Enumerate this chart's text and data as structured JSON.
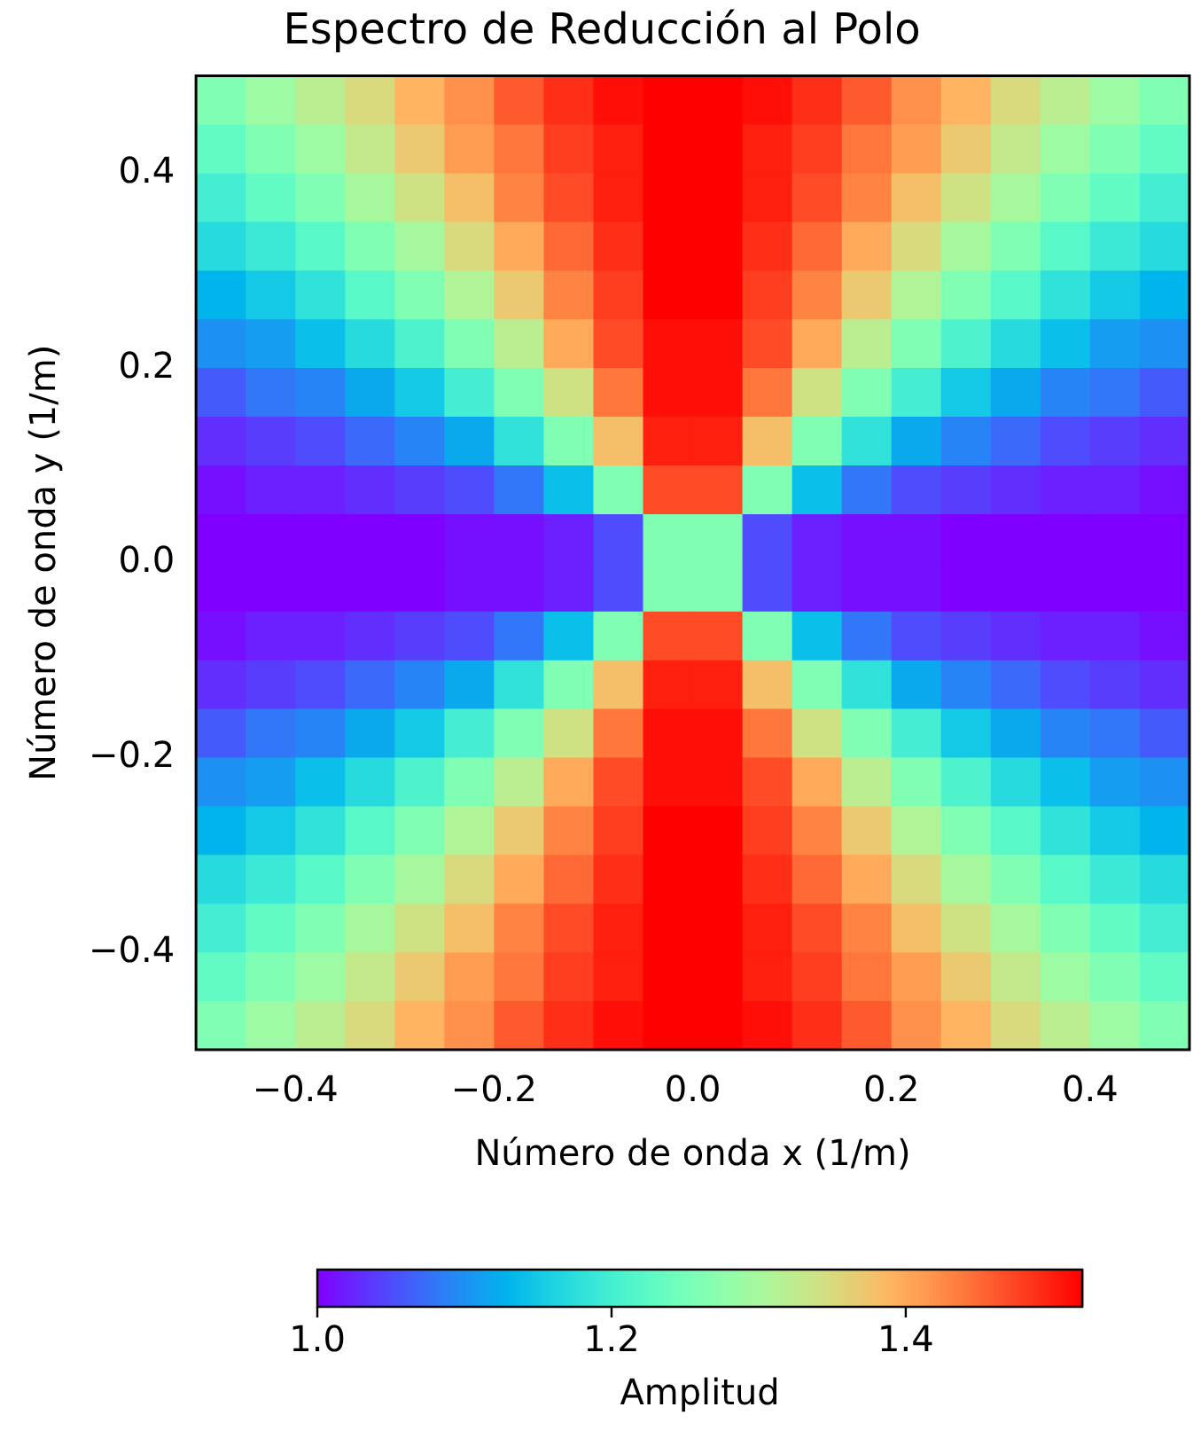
{
  "chart_data": {
    "type": "heatmap",
    "title": "Espectro de Reducción al Polo",
    "xlabel": "Número de onda x (1/m)",
    "ylabel": "Número de onda y (1/m)",
    "clabel": "Amplitud",
    "xlim": [
      -0.5,
      0.5
    ],
    "xticks": [
      {
        "value": -0.4,
        "label": "−0.4"
      },
      {
        "value": -0.2,
        "label": "−0.2"
      },
      {
        "value": 0,
        "label": "0.0"
      },
      0.2,
      0.4
    ],
    "ylim": [
      -0.5,
      0.5
    ],
    "yticks": [
      {
        "value": -0.4,
        "label": "−0.4"
      },
      {
        "value": -0.2,
        "label": "−0.2"
      },
      {
        "value": 0,
        "label": "0.0"
      },
      0.2,
      0.4
    ],
    "clim": [
      1.0,
      1.52
    ],
    "cticks": [
      {
        "value": 1,
        "label": "1.0"
      },
      1.2,
      1.4
    ],
    "cells": [
      [
        1.26,
        1.29,
        1.32,
        1.35,
        1.39,
        1.42,
        1.46,
        1.49,
        1.51,
        1.52,
        1.52,
        1.51,
        1.49,
        1.46,
        1.42,
        1.39,
        1.35,
        1.32,
        1.29,
        1.26
      ],
      [
        1.23,
        1.26,
        1.29,
        1.33,
        1.37,
        1.41,
        1.44,
        1.48,
        1.5,
        1.52,
        1.52,
        1.5,
        1.48,
        1.44,
        1.41,
        1.37,
        1.33,
        1.29,
        1.26,
        1.23
      ],
      [
        1.2,
        1.23,
        1.26,
        1.3,
        1.34,
        1.38,
        1.43,
        1.47,
        1.5,
        1.52,
        1.52,
        1.5,
        1.47,
        1.43,
        1.38,
        1.34,
        1.3,
        1.26,
        1.23,
        1.2
      ],
      [
        1.17,
        1.19,
        1.22,
        1.26,
        1.3,
        1.35,
        1.4,
        1.45,
        1.49,
        1.52,
        1.52,
        1.49,
        1.45,
        1.4,
        1.35,
        1.3,
        1.26,
        1.22,
        1.19,
        1.17
      ],
      [
        1.13,
        1.15,
        1.18,
        1.22,
        1.26,
        1.31,
        1.37,
        1.43,
        1.48,
        1.52,
        1.52,
        1.48,
        1.43,
        1.37,
        1.31,
        1.26,
        1.22,
        1.18,
        1.15,
        1.13
      ],
      [
        1.1,
        1.11,
        1.14,
        1.17,
        1.21,
        1.26,
        1.32,
        1.4,
        1.47,
        1.51,
        1.51,
        1.47,
        1.4,
        1.32,
        1.26,
        1.21,
        1.17,
        1.14,
        1.11,
        1.1
      ],
      [
        1.06,
        1.08,
        1.09,
        1.12,
        1.15,
        1.2,
        1.26,
        1.34,
        1.44,
        1.51,
        1.51,
        1.44,
        1.34,
        1.26,
        1.2,
        1.15,
        1.12,
        1.09,
        1.08,
        1.06
      ],
      [
        1.03,
        1.04,
        1.05,
        1.07,
        1.09,
        1.12,
        1.18,
        1.26,
        1.38,
        1.5,
        1.5,
        1.38,
        1.26,
        1.18,
        1.12,
        1.09,
        1.07,
        1.05,
        1.04,
        1.03
      ],
      [
        1.01,
        1.02,
        1.02,
        1.03,
        1.04,
        1.05,
        1.08,
        1.14,
        1.26,
        1.47,
        1.47,
        1.26,
        1.14,
        1.08,
        1.05,
        1.04,
        1.03,
        1.02,
        1.02,
        1.01
      ],
      [
        1.0,
        1.0,
        1.0,
        1.0,
        1.0,
        1.01,
        1.01,
        1.02,
        1.05,
        1.26,
        1.26,
        1.05,
        1.02,
        1.01,
        1.01,
        1.0,
        1.0,
        1.0,
        1.0,
        1.0
      ],
      [
        1.0,
        1.0,
        1.0,
        1.0,
        1.0,
        1.01,
        1.01,
        1.02,
        1.05,
        1.26,
        1.26,
        1.05,
        1.02,
        1.01,
        1.01,
        1.0,
        1.0,
        1.0,
        1.0,
        1.0
      ],
      [
        1.01,
        1.02,
        1.02,
        1.03,
        1.04,
        1.05,
        1.08,
        1.14,
        1.26,
        1.47,
        1.47,
        1.26,
        1.14,
        1.08,
        1.05,
        1.04,
        1.03,
        1.02,
        1.02,
        1.01
      ],
      [
        1.03,
        1.04,
        1.05,
        1.07,
        1.09,
        1.12,
        1.18,
        1.26,
        1.38,
        1.5,
        1.5,
        1.38,
        1.26,
        1.18,
        1.12,
        1.09,
        1.07,
        1.05,
        1.04,
        1.03
      ],
      [
        1.06,
        1.08,
        1.09,
        1.12,
        1.15,
        1.2,
        1.26,
        1.34,
        1.44,
        1.51,
        1.51,
        1.44,
        1.34,
        1.26,
        1.2,
        1.15,
        1.12,
        1.09,
        1.08,
        1.06
      ],
      [
        1.1,
        1.11,
        1.14,
        1.17,
        1.21,
        1.26,
        1.32,
        1.4,
        1.47,
        1.51,
        1.51,
        1.47,
        1.4,
        1.32,
        1.26,
        1.21,
        1.17,
        1.14,
        1.11,
        1.1
      ],
      [
        1.13,
        1.15,
        1.18,
        1.22,
        1.26,
        1.31,
        1.37,
        1.43,
        1.48,
        1.52,
        1.52,
        1.48,
        1.43,
        1.37,
        1.31,
        1.26,
        1.22,
        1.18,
        1.15,
        1.13
      ],
      [
        1.17,
        1.19,
        1.22,
        1.26,
        1.3,
        1.35,
        1.4,
        1.45,
        1.49,
        1.52,
        1.52,
        1.49,
        1.45,
        1.4,
        1.35,
        1.3,
        1.26,
        1.22,
        1.19,
        1.17
      ],
      [
        1.2,
        1.23,
        1.26,
        1.3,
        1.34,
        1.38,
        1.43,
        1.47,
        1.5,
        1.52,
        1.52,
        1.5,
        1.47,
        1.43,
        1.38,
        1.34,
        1.3,
        1.26,
        1.23,
        1.2
      ],
      [
        1.23,
        1.26,
        1.29,
        1.33,
        1.37,
        1.41,
        1.44,
        1.48,
        1.5,
        1.52,
        1.52,
        1.5,
        1.48,
        1.44,
        1.41,
        1.37,
        1.33,
        1.29,
        1.26,
        1.23
      ],
      [
        1.26,
        1.29,
        1.32,
        1.35,
        1.39,
        1.42,
        1.46,
        1.49,
        1.51,
        1.52,
        1.52,
        1.51,
        1.49,
        1.46,
        1.42,
        1.39,
        1.35,
        1.32,
        1.29,
        1.26
      ]
    ]
  }
}
